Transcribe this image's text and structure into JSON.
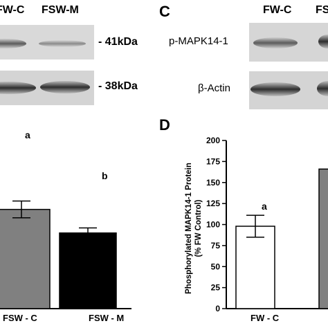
{
  "left_blot": {
    "lane_labels": [
      "FW-C",
      "FSW-M"
    ],
    "band_labels": [
      "- 41kDa",
      "- 38kDa"
    ]
  },
  "right_blot": {
    "panel_letter": "C",
    "lane_labels": [
      "FW-C",
      "FS"
    ],
    "row_labels": [
      "p-MAPK14-1",
      "β-Actin"
    ]
  },
  "chart_data": [
    {
      "type": "bar",
      "categories": [
        "FSW - C",
        "FSW - M"
      ],
      "values": [
        118,
        90
      ],
      "errors": [
        10,
        6
      ],
      "letters": [
        "a",
        "b"
      ],
      "colors": [
        "#808080",
        "#000000"
      ],
      "ylim": [
        0,
        200
      ]
    },
    {
      "type": "bar",
      "panel_letter": "D",
      "ylabel": "Phosphorylated MAPK14-1 Protein\n(% FW Control)",
      "ylim": [
        0,
        200
      ],
      "yticks": [
        "0",
        "25",
        "50",
        "75",
        "100",
        "125",
        "150",
        "175",
        "200"
      ],
      "categories": [
        "FW - C",
        ""
      ],
      "values": [
        98,
        166
      ],
      "errors": [
        13,
        0
      ],
      "letters": [
        "a",
        ""
      ],
      "colors": [
        "#ffffff",
        "#808080"
      ],
      "grid": false
    }
  ]
}
